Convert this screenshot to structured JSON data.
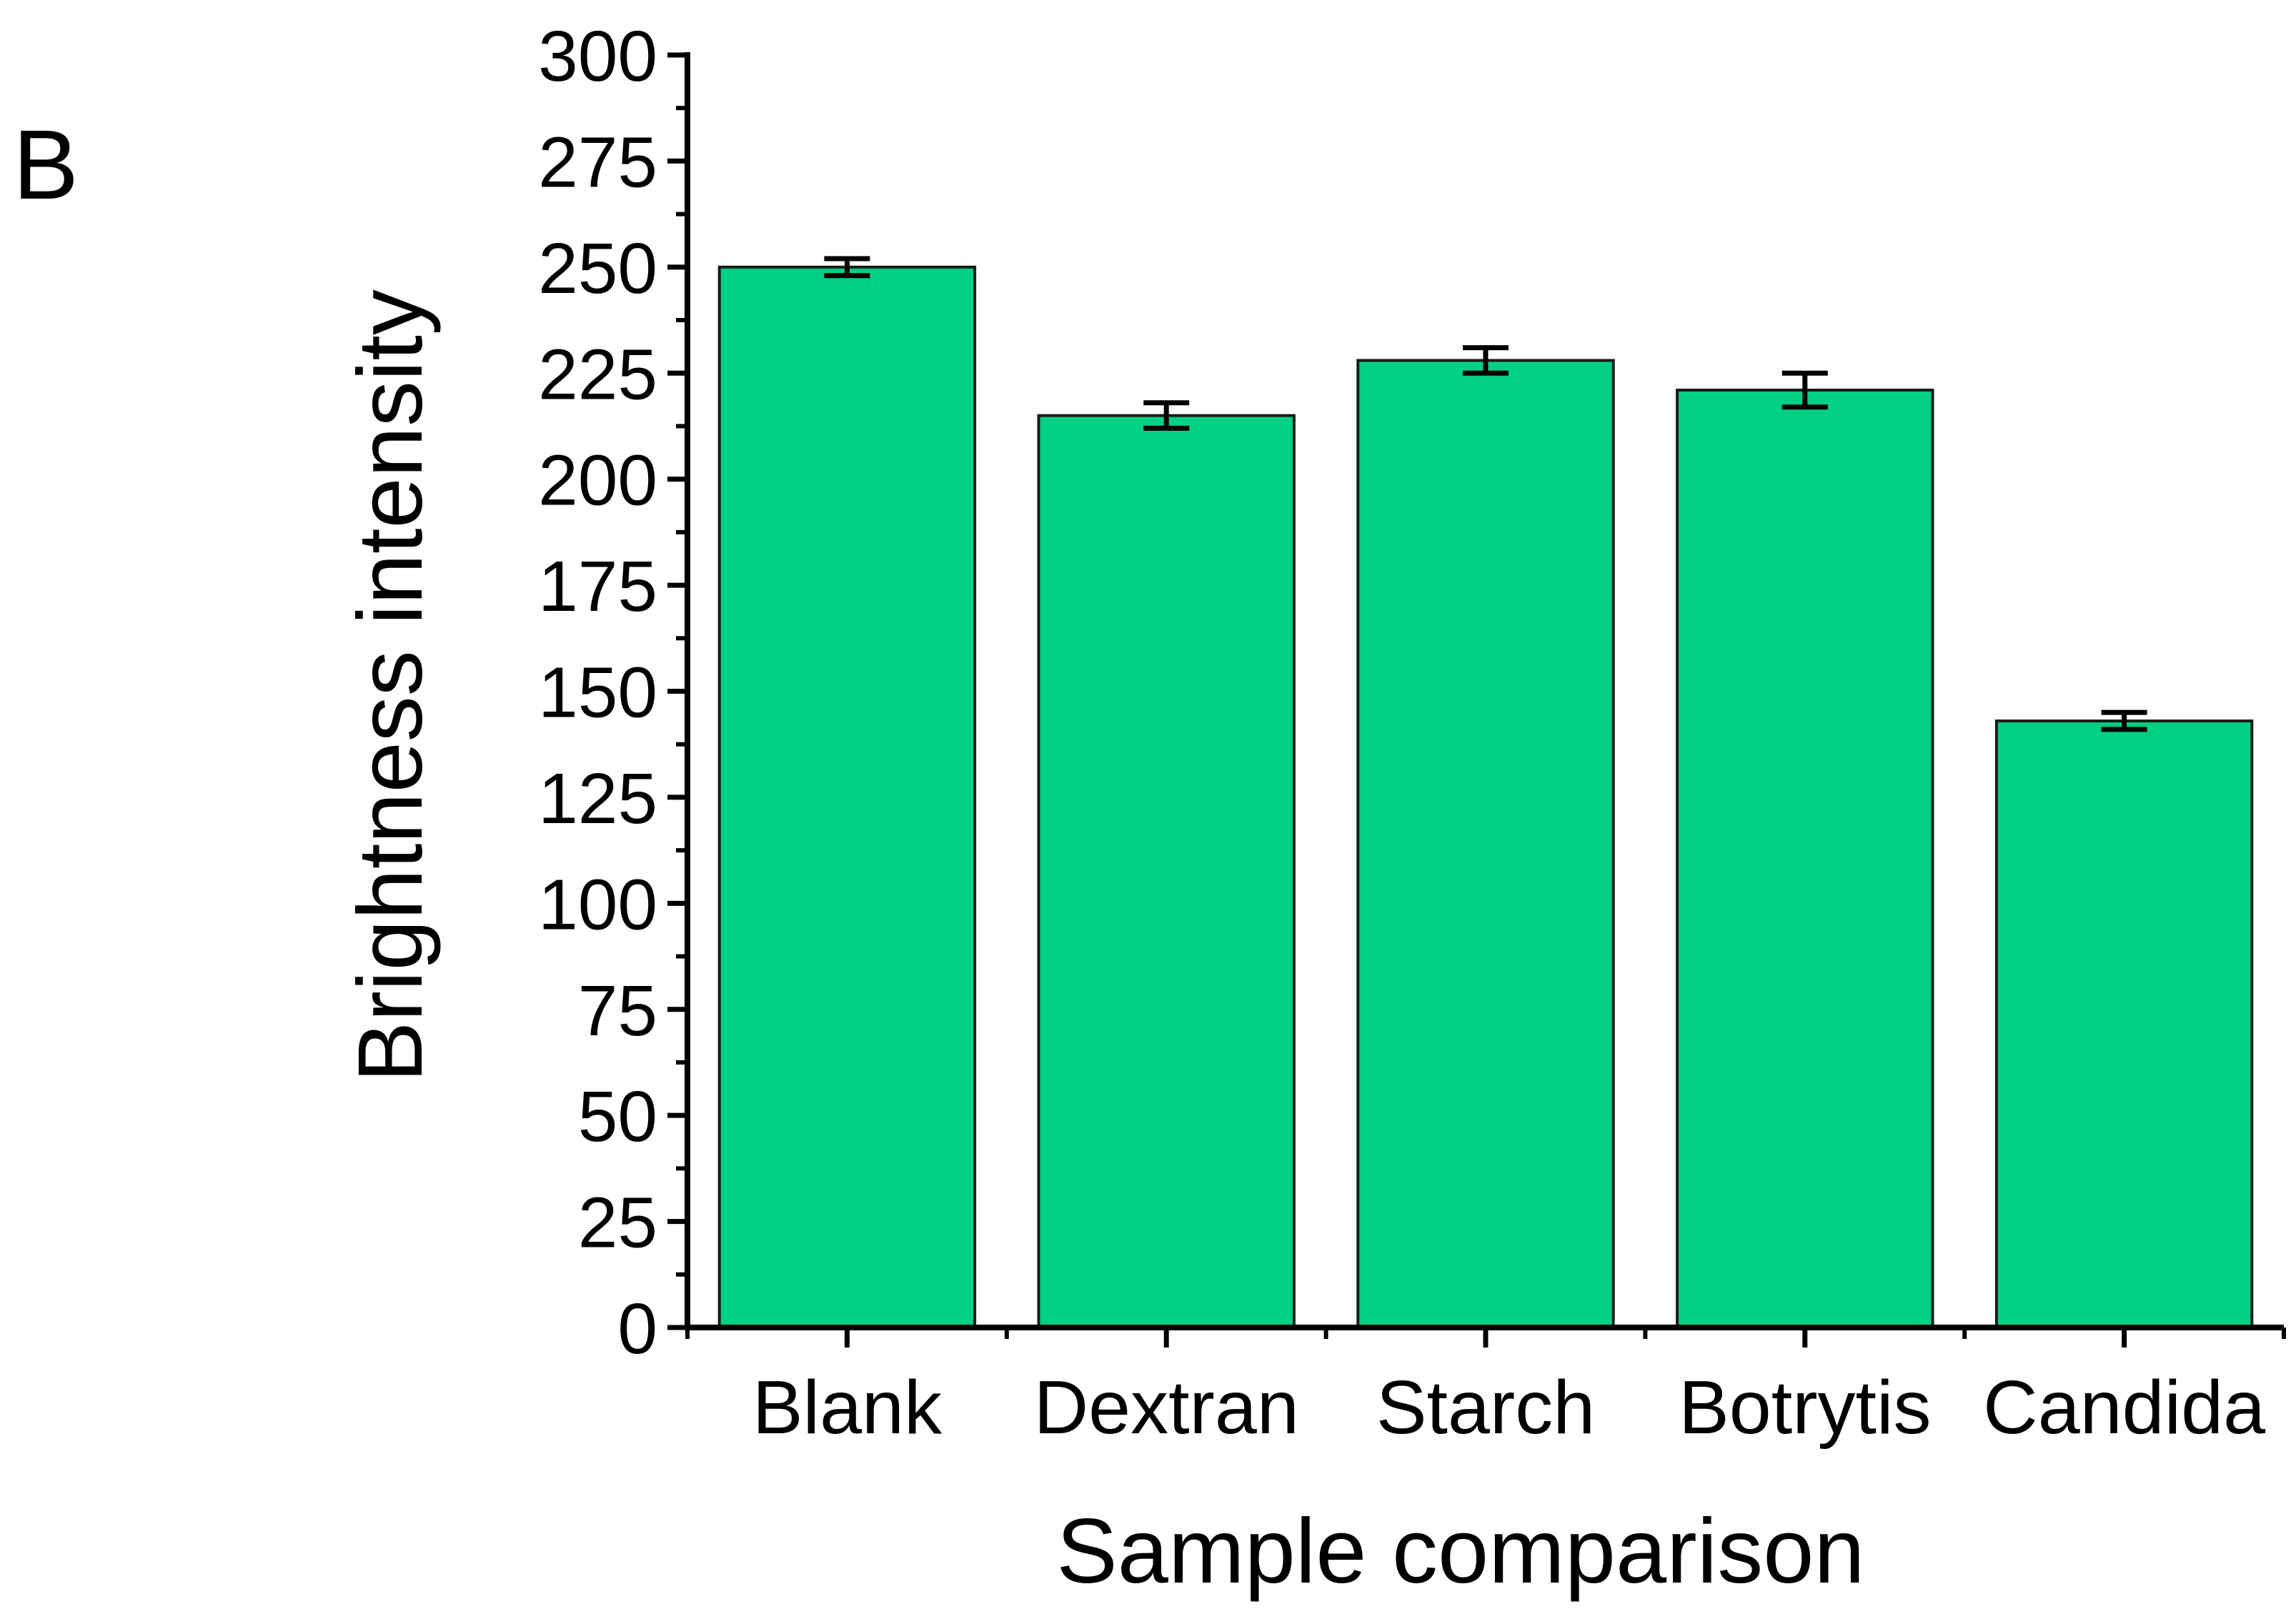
{
  "panel_label": "B",
  "colors": {
    "bar_fill": "#00d084",
    "bar_stroke": "#1a1a1a",
    "axis": "#000000",
    "error_bar": "#000000"
  },
  "chart_data": {
    "type": "bar",
    "xlabel": "Sample comparison",
    "ylabel": "Brightness intensity",
    "categories": [
      "Blank",
      "Dextran",
      "Starch",
      "Botrytis",
      "Candida"
    ],
    "values": [
      250,
      215,
      228,
      221,
      143
    ],
    "errors": [
      2,
      3,
      3,
      4,
      2
    ],
    "ylim": [
      0,
      300
    ],
    "y_major_ticks": [
      0,
      25,
      50,
      75,
      100,
      125,
      150,
      175,
      200,
      225,
      250,
      275,
      300
    ],
    "y_tick_labels": [
      "0",
      "25",
      "50",
      "75",
      "100",
      "125",
      "150",
      "175",
      "200",
      "225",
      "250",
      "275",
      "300"
    ],
    "grid": false,
    "legend": "none"
  }
}
